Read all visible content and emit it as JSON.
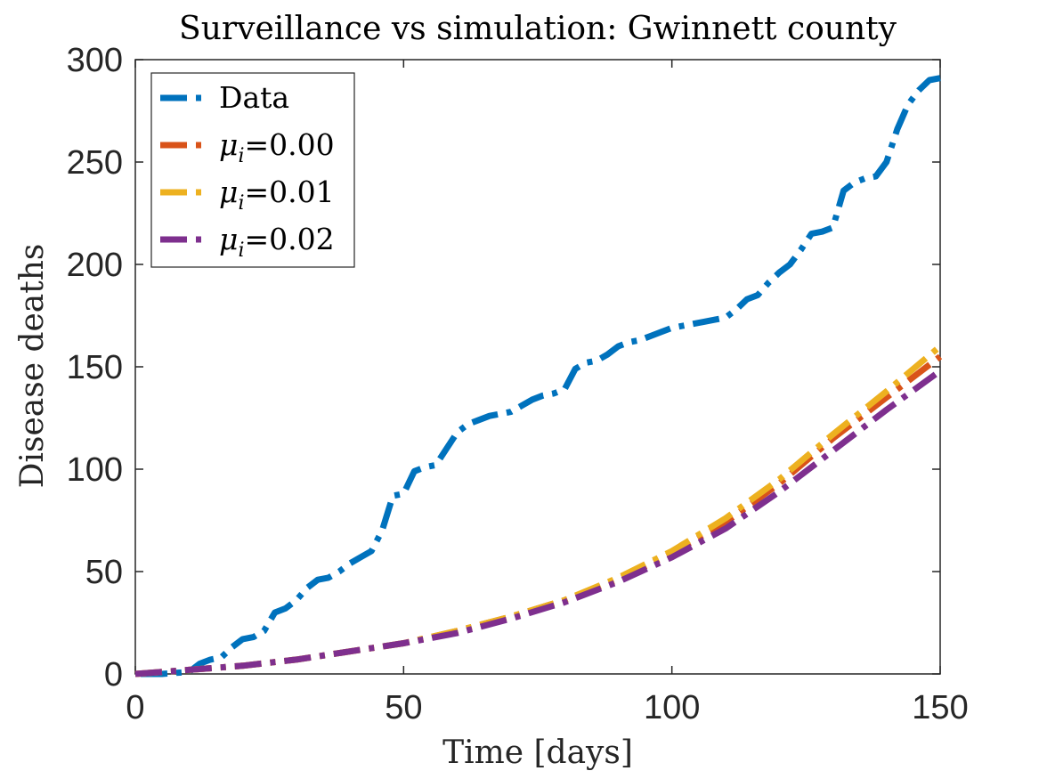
{
  "chart_data": {
    "type": "line",
    "title": "Surveillance vs simulation: Gwinnett county",
    "xlabel": "Time [days]",
    "ylabel": "Disease deaths",
    "xlim": [
      0,
      150
    ],
    "ylim": [
      0,
      300
    ],
    "xticks": [
      0,
      50,
      100,
      150
    ],
    "yticks": [
      0,
      50,
      100,
      150,
      200,
      250,
      300
    ],
    "legend_position": "top-left",
    "series": [
      {
        "name": "Data",
        "color": "#0072BD",
        "x": [
          1,
          5,
          10,
          12,
          14,
          16,
          18,
          20,
          22,
          24,
          26,
          28,
          30,
          32,
          34,
          36,
          38,
          40,
          42,
          44,
          46,
          48,
          50,
          52,
          54,
          56,
          58,
          60,
          62,
          64,
          66,
          68,
          70,
          72,
          74,
          76,
          78,
          80,
          82,
          84,
          86,
          88,
          90,
          92,
          94,
          96,
          98,
          100,
          102,
          104,
          106,
          108,
          110,
          112,
          114,
          116,
          118,
          120,
          122,
          124,
          126,
          128,
          130,
          132,
          134,
          136,
          138,
          140,
          142,
          144,
          146,
          148,
          150
        ],
        "values": [
          0,
          0,
          1,
          5,
          7,
          8,
          13,
          17,
          18,
          21,
          30,
          32,
          36,
          42,
          46,
          47,
          50,
          54,
          57,
          60,
          70,
          87,
          88,
          99,
          101,
          102,
          110,
          118,
          122,
          124,
          126,
          127,
          128,
          131,
          134,
          136,
          137,
          139,
          149,
          152,
          153,
          156,
          160,
          162,
          163,
          165,
          167,
          169,
          170,
          171,
          172,
          173,
          174,
          178,
          183,
          185,
          191,
          196,
          200,
          207,
          215,
          216,
          218,
          236,
          240,
          242,
          243,
          250,
          266,
          278,
          285,
          290,
          291
        ]
      },
      {
        "name": "μi=0.00",
        "color": "#D95319",
        "x": [
          0,
          10,
          20,
          30,
          40,
          50,
          60,
          70,
          80,
          90,
          100,
          110,
          120,
          130,
          140,
          150
        ],
        "values": [
          0,
          2,
          4,
          7,
          11,
          15,
          21,
          28,
          36,
          46,
          59,
          74,
          93,
          115,
          135,
          155
        ]
      },
      {
        "name": "μi=0.01",
        "color": "#EDB120",
        "x": [
          0,
          10,
          20,
          30,
          40,
          50,
          60,
          70,
          80,
          90,
          100,
          110,
          120,
          130,
          140,
          150
        ],
        "values": [
          0,
          2,
          4,
          7,
          11,
          15,
          21,
          28,
          36,
          47,
          60,
          76,
          95,
          117,
          138,
          160
        ]
      },
      {
        "name": "μi=0.02",
        "color": "#7E2F8E",
        "x": [
          0,
          10,
          20,
          30,
          40,
          50,
          60,
          70,
          80,
          90,
          100,
          110,
          120,
          130,
          140,
          150
        ],
        "values": [
          0,
          2,
          4,
          7,
          11,
          15,
          20,
          27,
          35,
          45,
          57,
          71,
          89,
          109,
          129,
          148
        ]
      }
    ],
    "legend": {
      "entries": [
        {
          "prefix": "",
          "symbol": "",
          "sub": "",
          "suffix": "Data"
        },
        {
          "prefix": "",
          "symbol": "μ",
          "sub": "i",
          "suffix": "=0.00"
        },
        {
          "prefix": "",
          "symbol": "μ",
          "sub": "i",
          "suffix": "=0.01"
        },
        {
          "prefix": "",
          "symbol": "μ",
          "sub": "i",
          "suffix": "=0.02"
        }
      ]
    }
  }
}
